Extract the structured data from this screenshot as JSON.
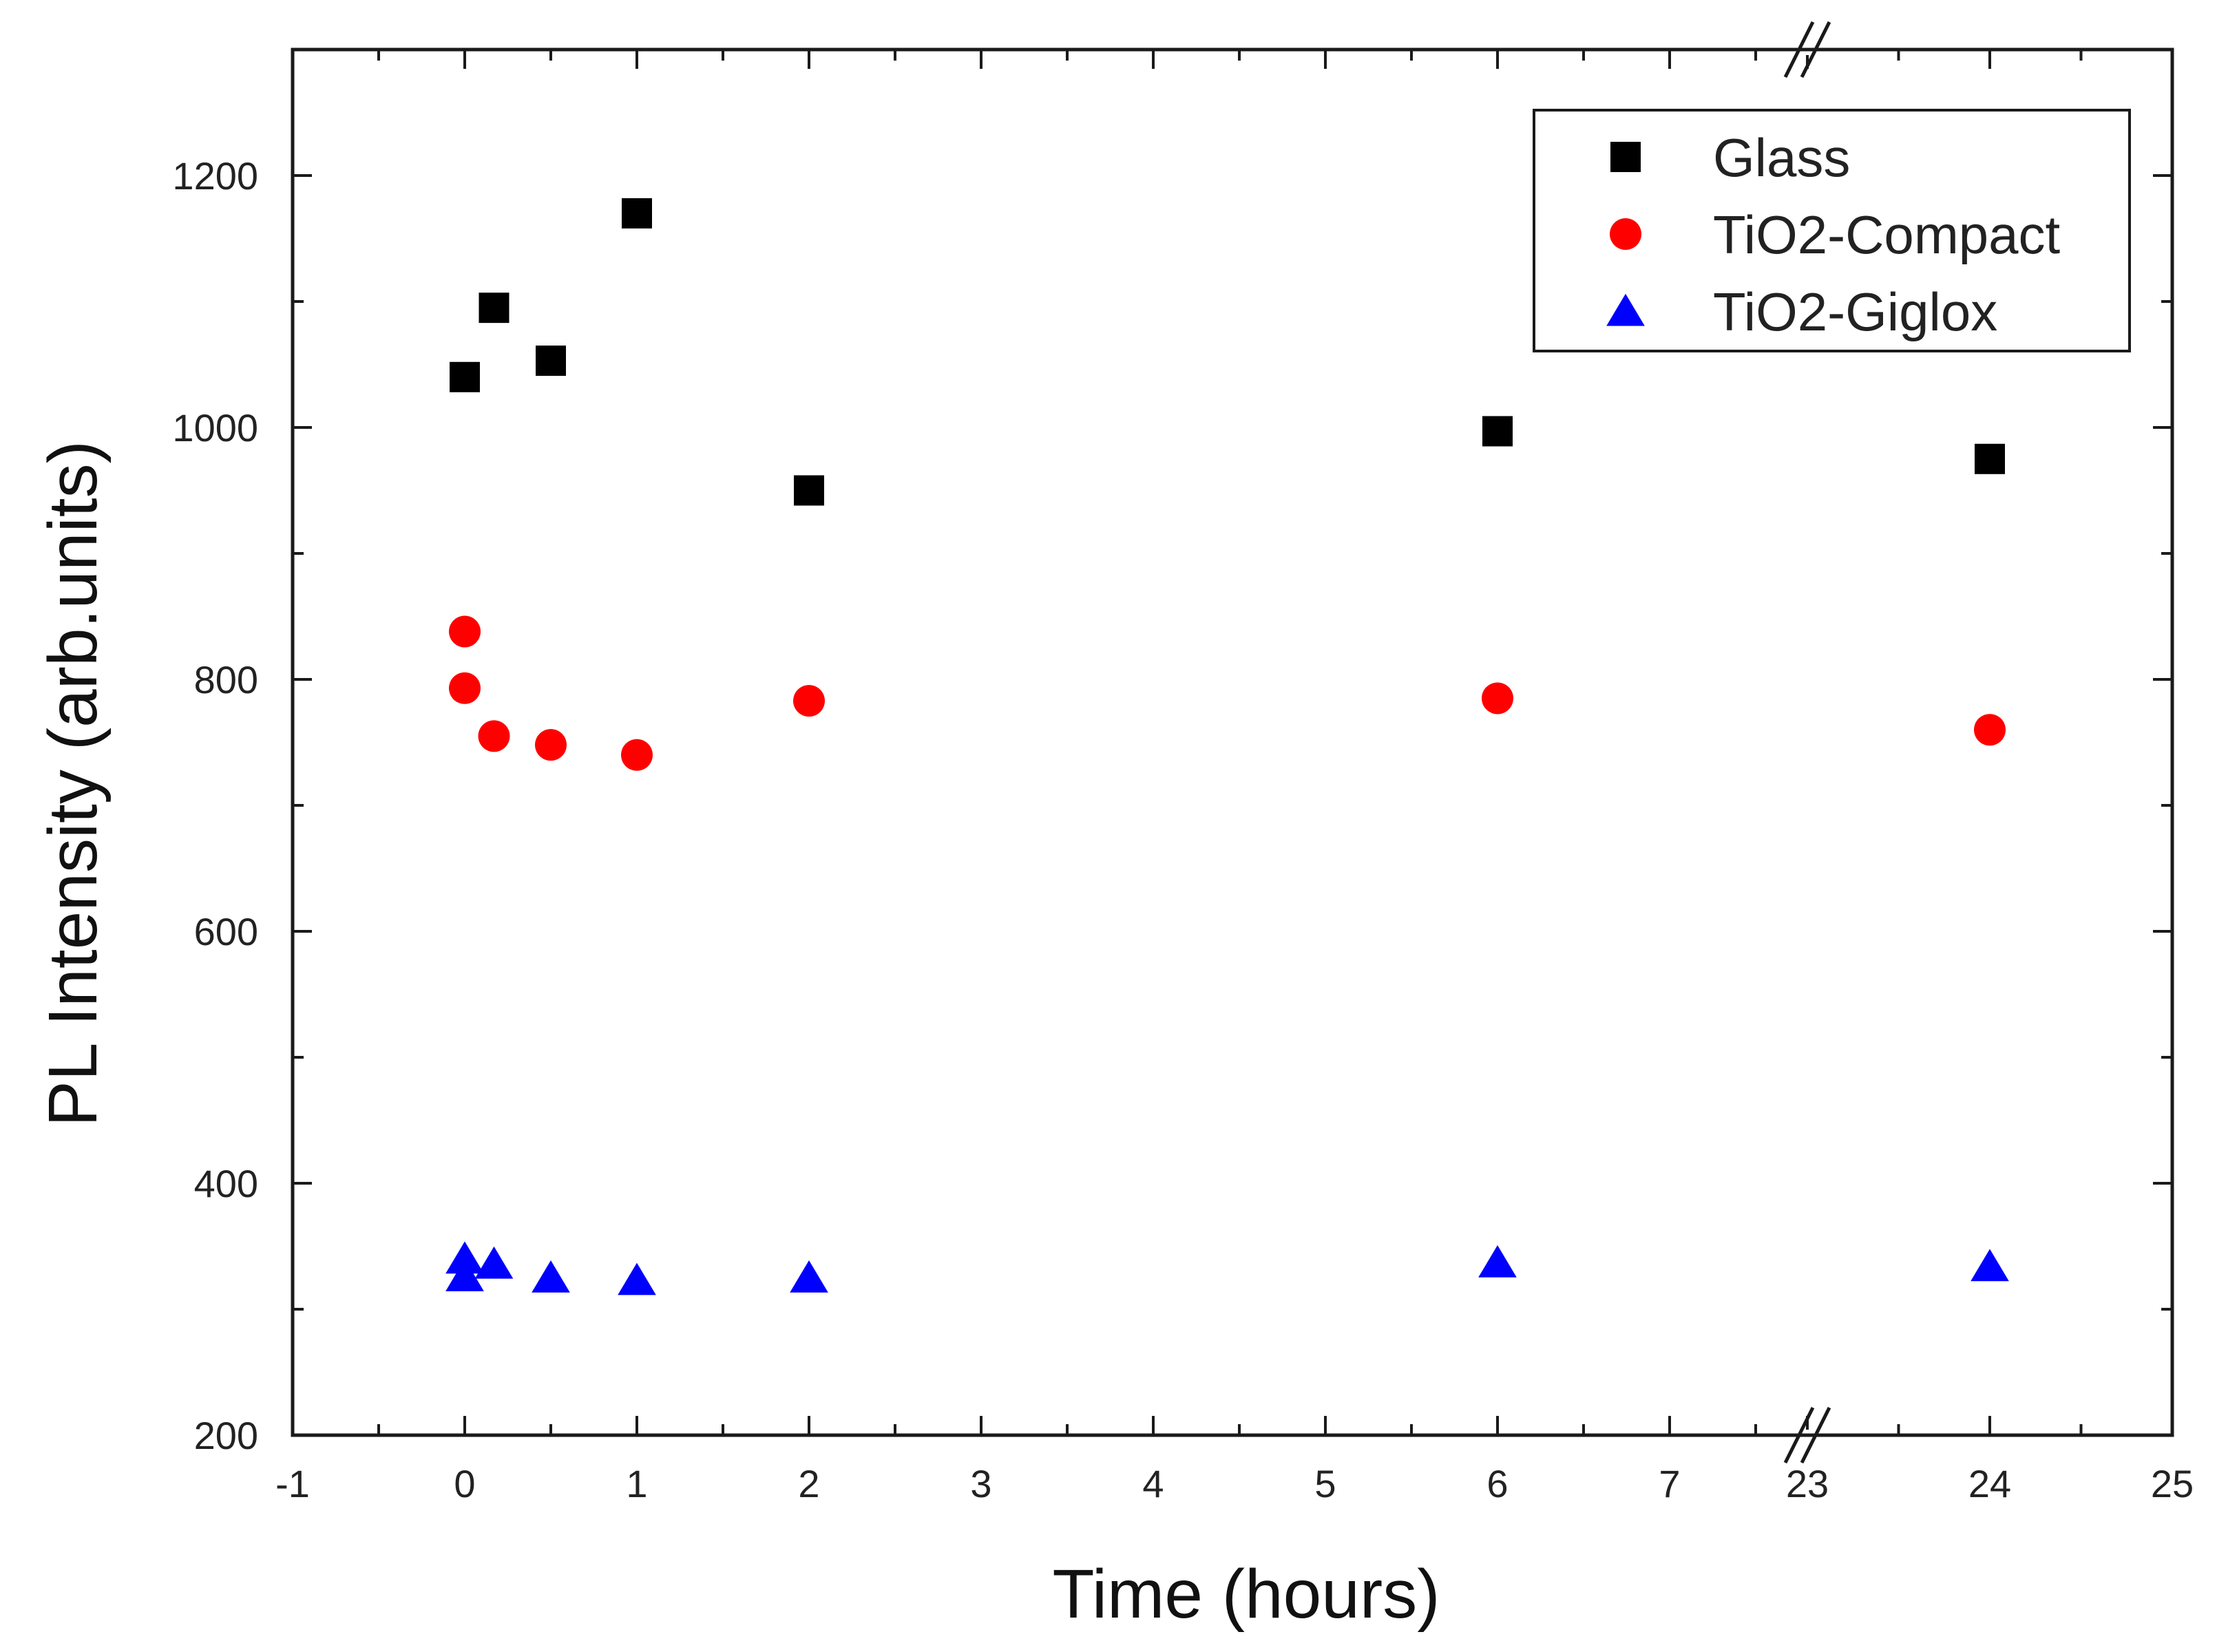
{
  "chart_data": {
    "type": "scatter",
    "title": "",
    "xlabel": "Time (hours)",
    "ylabel": "PL Intensity (arb.units)",
    "ylim": [
      200,
      1300
    ],
    "x_break": {
      "from": 7.8,
      "to": 23
    },
    "xticks": [
      {
        "value": -1,
        "label": "-1"
      },
      {
        "value": 0,
        "label": "0"
      },
      {
        "value": 1,
        "label": "1"
      },
      {
        "value": 2,
        "label": "2"
      },
      {
        "value": 3,
        "label": "3"
      },
      {
        "value": 4,
        "label": "4"
      },
      {
        "value": 5,
        "label": "5"
      },
      {
        "value": 6,
        "label": "6"
      },
      {
        "value": 7,
        "label": "7"
      },
      {
        "value": 23,
        "label": "23"
      },
      {
        "value": 24,
        "label": "24"
      },
      {
        "value": 25,
        "label": "25"
      }
    ],
    "yticks": [
      {
        "value": 200,
        "label": "200"
      },
      {
        "value": 400,
        "label": "400"
      },
      {
        "value": 600,
        "label": "600"
      },
      {
        "value": 800,
        "label": "800"
      },
      {
        "value": 1000,
        "label": "1000"
      },
      {
        "value": 1200,
        "label": "1200"
      }
    ],
    "legend_position": "top-right",
    "grid": false,
    "series": [
      {
        "name": "Glass",
        "marker": "square",
        "color": "#000000",
        "points": [
          {
            "x": 0,
            "y": 1040
          },
          {
            "x": 0.17,
            "y": 1095
          },
          {
            "x": 0.5,
            "y": 1053
          },
          {
            "x": 1,
            "y": 1170
          },
          {
            "x": 2,
            "y": 950
          },
          {
            "x": 6,
            "y": 997
          },
          {
            "x": 24,
            "y": 975
          }
        ]
      },
      {
        "name": "TiO2-Compact",
        "marker": "circle",
        "color": "#ff0000",
        "points": [
          {
            "x": 0,
            "y": 838
          },
          {
            "x": 0,
            "y": 793
          },
          {
            "x": 0.17,
            "y": 755
          },
          {
            "x": 0.5,
            "y": 748
          },
          {
            "x": 1,
            "y": 740
          },
          {
            "x": 2,
            "y": 783
          },
          {
            "x": 6,
            "y": 785
          },
          {
            "x": 24,
            "y": 760
          }
        ]
      },
      {
        "name": "TiO2-Giglox",
        "marker": "triangle",
        "color": "#0000ff",
        "points": [
          {
            "x": 0,
            "y": 340
          },
          {
            "x": 0,
            "y": 326
          },
          {
            "x": 0.17,
            "y": 336
          },
          {
            "x": 0.5,
            "y": 325
          },
          {
            "x": 1,
            "y": 323
          },
          {
            "x": 2,
            "y": 325
          },
          {
            "x": 6,
            "y": 337
          },
          {
            "x": 24,
            "y": 334
          }
        ]
      }
    ]
  }
}
